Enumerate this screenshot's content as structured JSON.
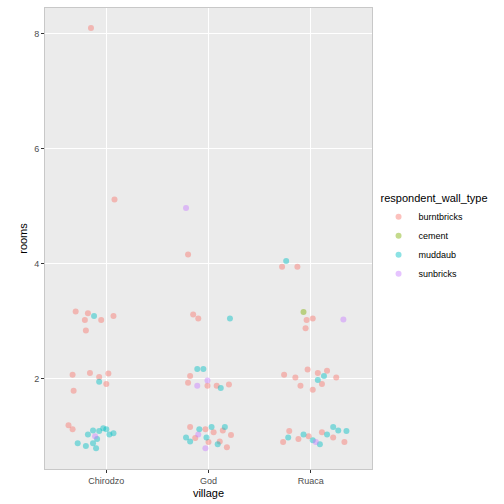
{
  "chart_data": {
    "type": "scatter",
    "x_label": "village",
    "y_label": "rooms",
    "legend_title": "respondent_wall_type",
    "legend": "right",
    "grid": true,
    "marker": "circle",
    "xlim": [
      0.4,
      3.6
    ],
    "xticks": [
      {
        "value": 1,
        "label": "Chirodzo"
      },
      {
        "value": 2,
        "label": "God"
      },
      {
        "value": 3,
        "label": "Ruaca"
      }
    ],
    "ylim": [
      0.43,
      8.45
    ],
    "yticks": [
      2,
      4,
      6,
      8
    ],
    "series": [
      {
        "name": "burntbricks",
        "color": "#F8766D",
        "x": [
          0.85,
          1.08,
          0.7,
          0.82,
          0.79,
          0.95,
          0.8,
          1.07,
          0.67,
          0.84,
          0.93,
          1.02,
          0.68,
          1.0,
          0.63,
          0.67,
          1.8,
          1.85,
          1.9,
          1.82,
          1.8,
          1.99,
          2.08,
          2.2,
          1.82,
          1.97,
          2.05,
          2.14,
          2.22,
          1.87,
          2.0,
          2.18,
          2.11,
          2.72,
          2.87,
          2.96,
          3.02,
          2.95,
          2.97,
          3.07,
          3.16,
          3.25,
          2.74,
          2.85,
          2.9,
          3.02,
          3.11,
          2.79,
          2.73,
          2.88,
          2.98,
          3.11,
          3.22,
          3.33
        ],
        "values": [
          8.1,
          5.12,
          3.17,
          3.14,
          3.02,
          3.02,
          2.84,
          3.09,
          2.07,
          2.1,
          2.03,
          2.09,
          1.79,
          1.91,
          1.19,
          1.12,
          4.16,
          3.12,
          3.05,
          2.05,
          1.93,
          1.88,
          1.88,
          1.9,
          1.16,
          1.12,
          1.07,
          1.1,
          1.02,
          0.97,
          0.9,
          0.81,
          0.91,
          3.95,
          3.95,
          3.02,
          3.05,
          2.88,
          2.16,
          2.1,
          2.14,
          2.02,
          2.07,
          2.02,
          1.88,
          1.81,
          1.91,
          1.09,
          0.9,
          0.95,
          1.0,
          1.07,
          0.98,
          0.9
        ]
      },
      {
        "name": "cement",
        "color": "#7CAE00",
        "x": [
          2.93
        ],
        "values": [
          3.16
        ]
      },
      {
        "name": "muddaub",
        "color": "#00BFC4",
        "x": [
          0.88,
          0.93,
          0.82,
          0.87,
          0.93,
          0.97,
          1.0,
          1.07,
          0.91,
          0.8,
          0.9,
          0.72,
          0.87,
          1.03,
          1.89,
          1.95,
          2.21,
          2.12,
          1.78,
          1.91,
          2.03,
          2.16,
          1.98,
          2.09,
          1.82,
          2.76,
          3.13,
          3.07,
          2.78,
          2.93,
          3.02,
          3.16,
          3.27,
          3.35,
          3.09,
          3.22
        ],
        "values": [
          3.09,
          1.95,
          1.03,
          1.1,
          1.09,
          1.14,
          1.12,
          1.05,
          0.95,
          0.83,
          0.79,
          0.88,
          0.88,
          1.03,
          2.17,
          2.17,
          3.05,
          1.84,
          0.98,
          1.12,
          1.16,
          1.16,
          0.98,
          0.86,
          0.91,
          4.05,
          2.05,
          1.98,
          0.98,
          1.03,
          0.93,
          1.03,
          1.1,
          1.09,
          0.86,
          1.16
        ]
      },
      {
        "name": "sunbricks",
        "color": "#C77CFF",
        "x": [
          0.89,
          1.78,
          1.89,
          1.99,
          1.97,
          1.9,
          3.32,
          3.05
        ],
        "values": [
          1.0,
          4.97,
          1.88,
          1.97,
          0.79,
          1.03,
          3.03,
          0.9
        ]
      }
    ]
  }
}
